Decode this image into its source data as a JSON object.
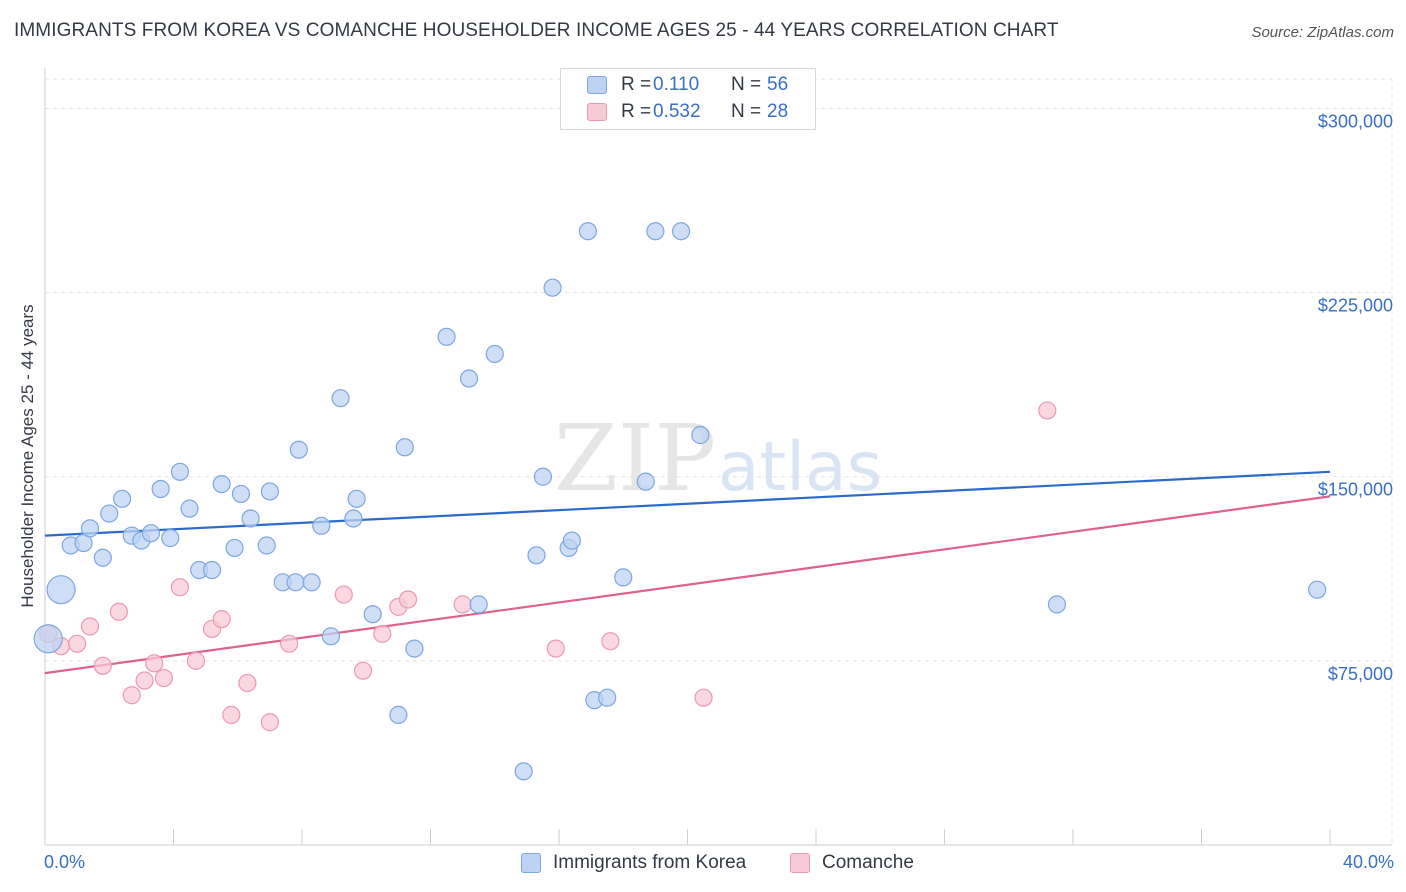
{
  "header": {
    "title": "IMMIGRANTS FROM KOREA VS COMANCHE HOUSEHOLDER INCOME AGES 25 - 44 YEARS CORRELATION CHART",
    "source": "Source: ZipAtlas.com"
  },
  "watermark": {
    "zip": "ZIP",
    "atlas": "atlas"
  },
  "colors": {
    "korea_fill": "#bcd3f3",
    "korea_stroke": "#7ea7dd",
    "korea_line": "#2b6cc8",
    "comanche_fill": "#f8c9d7",
    "comanche_stroke": "#eb9ab3",
    "comanche_line": "#e0608e",
    "axis_label": "#3a6fc4",
    "grid": "#e3e3e3"
  },
  "legend_top": [
    {
      "r_label": "R =",
      "r_value": "0.110",
      "n_label": "N =",
      "n_value": "56"
    },
    {
      "r_label": "R =",
      "r_value": "0.532",
      "n_label": "N =",
      "n_value": "28"
    }
  ],
  "chart_data": {
    "type": "scatter",
    "title": "IMMIGRANTS FROM KOREA VS COMANCHE HOUSEHOLDER INCOME AGES 25 - 44 YEARS CORRELATION CHART",
    "xlabel": "",
    "ylabel": "Householder Income Ages 25 - 44 years",
    "xlim": [
      0,
      40
    ],
    "ylim": [
      0,
      312000
    ],
    "x_tick_labels": [
      "0.0%",
      "40.0%"
    ],
    "y_ticks": [
      75000,
      150000,
      225000,
      300000
    ],
    "y_tick_labels": [
      "$75,000",
      "$150,000",
      "$225,000",
      "$300,000"
    ],
    "grid": true,
    "legend": "bottom-center",
    "series": [
      {
        "name": "Immigrants from Korea",
        "r": 0.11,
        "n": 56,
        "trend": {
          "x": [
            0,
            40
          ],
          "y": [
            126000,
            152000
          ]
        },
        "points": [
          {
            "x": 0.1,
            "y": 84000,
            "big": true
          },
          {
            "x": 0.5,
            "y": 104000,
            "big": true
          },
          {
            "x": 0.8,
            "y": 122000
          },
          {
            "x": 1.2,
            "y": 123000
          },
          {
            "x": 1.4,
            "y": 129000
          },
          {
            "x": 1.8,
            "y": 117000
          },
          {
            "x": 2.0,
            "y": 135000
          },
          {
            "x": 2.4,
            "y": 141000
          },
          {
            "x": 2.7,
            "y": 126000
          },
          {
            "x": 3.0,
            "y": 124000
          },
          {
            "x": 3.3,
            "y": 127000
          },
          {
            "x": 3.6,
            "y": 145000
          },
          {
            "x": 3.9,
            "y": 125000
          },
          {
            "x": 4.2,
            "y": 152000
          },
          {
            "x": 4.5,
            "y": 137000
          },
          {
            "x": 4.8,
            "y": 112000
          },
          {
            "x": 5.2,
            "y": 112000
          },
          {
            "x": 5.5,
            "y": 147000
          },
          {
            "x": 5.9,
            "y": 121000
          },
          {
            "x": 6.1,
            "y": 143000
          },
          {
            "x": 6.4,
            "y": 133000
          },
          {
            "x": 6.9,
            "y": 122000
          },
          {
            "x": 7.0,
            "y": 144000
          },
          {
            "x": 7.4,
            "y": 107000
          },
          {
            "x": 7.8,
            "y": 107000
          },
          {
            "x": 7.9,
            "y": 161000
          },
          {
            "x": 8.3,
            "y": 107000
          },
          {
            "x": 8.6,
            "y": 130000
          },
          {
            "x": 8.9,
            "y": 85000
          },
          {
            "x": 9.2,
            "y": 182000
          },
          {
            "x": 9.6,
            "y": 133000
          },
          {
            "x": 9.7,
            "y": 141000
          },
          {
            "x": 10.2,
            "y": 94000
          },
          {
            "x": 11.2,
            "y": 162000
          },
          {
            "x": 11.5,
            "y": 80000
          },
          {
            "x": 11.0,
            "y": 53000
          },
          {
            "x": 12.5,
            "y": 207000
          },
          {
            "x": 13.2,
            "y": 190000
          },
          {
            "x": 13.5,
            "y": 98000
          },
          {
            "x": 14.0,
            "y": 200000
          },
          {
            "x": 15.3,
            "y": 118000
          },
          {
            "x": 15.5,
            "y": 150000
          },
          {
            "x": 14.9,
            "y": 30000
          },
          {
            "x": 15.8,
            "y": 227000
          },
          {
            "x": 16.3,
            "y": 121000
          },
          {
            "x": 16.4,
            "y": 124000
          },
          {
            "x": 16.9,
            "y": 250000
          },
          {
            "x": 17.1,
            "y": 59000
          },
          {
            "x": 17.5,
            "y": 60000
          },
          {
            "x": 18.0,
            "y": 109000
          },
          {
            "x": 18.7,
            "y": 148000
          },
          {
            "x": 19.0,
            "y": 250000
          },
          {
            "x": 19.8,
            "y": 250000
          },
          {
            "x": 20.4,
            "y": 167000
          },
          {
            "x": 31.5,
            "y": 98000
          },
          {
            "x": 39.6,
            "y": 104000
          }
        ]
      },
      {
        "name": "Comanche",
        "r": 0.532,
        "n": 28,
        "trend": {
          "x": [
            0,
            40
          ],
          "y": [
            70000,
            142000
          ]
        },
        "points": [
          {
            "x": 0.1,
            "y": 86000
          },
          {
            "x": 0.5,
            "y": 81000
          },
          {
            "x": 1.0,
            "y": 82000
          },
          {
            "x": 1.4,
            "y": 89000
          },
          {
            "x": 1.8,
            "y": 73000
          },
          {
            "x": 2.3,
            "y": 95000
          },
          {
            "x": 2.7,
            "y": 61000
          },
          {
            "x": 3.1,
            "y": 67000
          },
          {
            "x": 3.4,
            "y": 74000
          },
          {
            "x": 3.7,
            "y": 68000
          },
          {
            "x": 4.2,
            "y": 105000
          },
          {
            "x": 4.7,
            "y": 75000
          },
          {
            "x": 5.2,
            "y": 88000
          },
          {
            "x": 5.5,
            "y": 92000
          },
          {
            "x": 5.8,
            "y": 53000
          },
          {
            "x": 6.3,
            "y": 66000
          },
          {
            "x": 7.0,
            "y": 50000
          },
          {
            "x": 7.6,
            "y": 82000
          },
          {
            "x": 9.3,
            "y": 102000
          },
          {
            "x": 9.9,
            "y": 71000
          },
          {
            "x": 10.5,
            "y": 86000
          },
          {
            "x": 11.0,
            "y": 97000
          },
          {
            "x": 11.3,
            "y": 100000
          },
          {
            "x": 13.0,
            "y": 98000
          },
          {
            "x": 15.9,
            "y": 80000
          },
          {
            "x": 17.6,
            "y": 83000
          },
          {
            "x": 20.5,
            "y": 60000
          },
          {
            "x": 31.2,
            "y": 177000
          }
        ]
      }
    ]
  }
}
